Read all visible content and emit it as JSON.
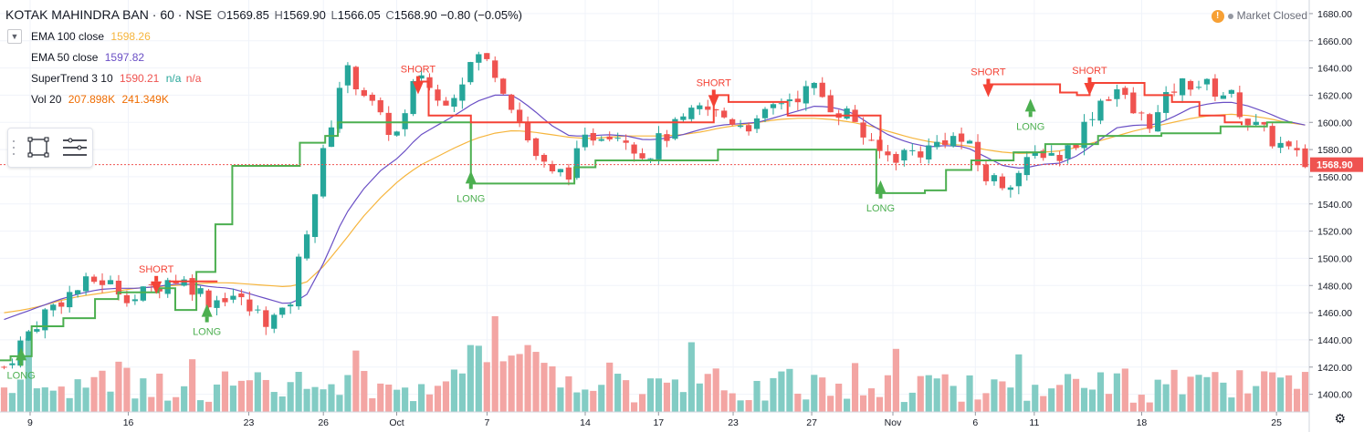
{
  "header": {
    "symbol": "KOTAK MAHINDRA BAN · 60 · NSE",
    "open_label": "O",
    "open": "1569.85",
    "high_label": "H",
    "high": "1569.90",
    "low_label": "L",
    "low": "1566.05",
    "close_label": "C",
    "close": "1568.90",
    "change": "−0.80 (−0.05%)"
  },
  "status": {
    "text": "Market Closed",
    "warning_icon": "exclamation-icon"
  },
  "indicators": [
    {
      "name": "EMA 100 close",
      "value": "1598.26",
      "color": "#f6b53d"
    },
    {
      "name": "EMA 50 close",
      "value": "1597.82",
      "color": "#6a4fc5"
    },
    {
      "name": "SuperTrend 3 10",
      "value": "1590.21",
      "extra1": "n/a",
      "extra2": "n/a",
      "color": "#ef5350",
      "extra_color": "#26a69a"
    },
    {
      "name": "Vol 20",
      "value": "207.898K",
      "value2": "241.349K",
      "color": "#ef6c00"
    }
  ],
  "price_tag": "1568.90",
  "colors": {
    "up": "#26a69a",
    "down": "#ef5350",
    "grid": "#f0f3fa",
    "ema100": "#f6b53d",
    "ema50": "#6a4fc5",
    "st_long": "#4caf50",
    "st_short": "#f44336",
    "vol_up": "#82ccc4",
    "vol_down": "#f3a5a3"
  },
  "chart_data": {
    "type": "candlestick",
    "title": "KOTAK MAHINDRA BAN · 60 · NSE",
    "ylim": [
      1387,
      1690
    ],
    "y_ticks": [
      "1680.00",
      "1660.00",
      "1640.00",
      "1620.00",
      "1600.00",
      "1580.00",
      "1560.00",
      "1540.00",
      "1520.00",
      "1500.00",
      "1480.00",
      "1460.00",
      "1440.00",
      "1420.00",
      "1400.00"
    ],
    "x_ticks": [
      "9",
      "16",
      "23",
      "26",
      "Oct",
      "7",
      "14",
      "17",
      "23",
      "27",
      "Nov",
      "6",
      "11",
      "18",
      "25"
    ],
    "last_price": 1568.9,
    "price_path": [
      1420,
      1440,
      1458,
      1470,
      1478,
      1485,
      1478,
      1470,
      1480,
      1486,
      1480,
      1468,
      1475,
      1462,
      1455,
      1458,
      1520,
      1580,
      1640,
      1625,
      1600,
      1590,
      1640,
      1615,
      1625,
      1650,
      1640,
      1612,
      1580,
      1560,
      1565,
      1590,
      1595,
      1590,
      1575,
      1590,
      1600,
      1610,
      1605,
      1600,
      1598,
      1615,
      1620,
      1625,
      1610,
      1605,
      1580,
      1575,
      1578,
      1580,
      1590,
      1585,
      1560,
      1555,
      1565,
      1580,
      1575,
      1590,
      1615,
      1625,
      1605,
      1600,
      1625,
      1630,
      1625,
      1620,
      1600,
      1590,
      1580,
      1569
    ],
    "ema100_path": [
      1460,
      1462,
      1465,
      1469,
      1472,
      1474,
      1476,
      1478,
      1479,
      1480,
      1481,
      1482,
      1482,
      1481,
      1480,
      1479,
      1482,
      1495,
      1512,
      1530,
      1545,
      1558,
      1568,
      1575,
      1582,
      1588,
      1592,
      1594,
      1593,
      1591,
      1589,
      1588,
      1589,
      1590,
      1590,
      1590,
      1591,
      1593,
      1596,
      1598,
      1600,
      1602,
      1603,
      1603,
      1602,
      1600,
      1597,
      1593,
      1589,
      1586,
      1584,
      1583,
      1580,
      1578,
      1577,
      1578,
      1579,
      1582,
      1586,
      1590,
      1594,
      1597,
      1600,
      1603,
      1605,
      1606,
      1605,
      1603,
      1600,
      1598
    ],
    "ema50_path": [
      1455,
      1460,
      1465,
      1470,
      1474,
      1477,
      1478,
      1478,
      1479,
      1481,
      1481,
      1479,
      1478,
      1474,
      1470,
      1466,
      1472,
      1498,
      1530,
      1550,
      1565,
      1575,
      1590,
      1598,
      1606,
      1615,
      1620,
      1620,
      1610,
      1598,
      1590,
      1590,
      1591,
      1590,
      1587,
      1588,
      1591,
      1595,
      1598,
      1599,
      1600,
      1604,
      1608,
      1612,
      1611,
      1607,
      1598,
      1590,
      1585,
      1582,
      1583,
      1582,
      1575,
      1568,
      1566,
      1569,
      1570,
      1576,
      1586,
      1596,
      1598,
      1598,
      1604,
      1611,
      1614,
      1615,
      1612,
      1607,
      1601,
      1598
    ],
    "supertrend_long_path": [
      [
        0,
        1425
      ],
      [
        0.5,
        1428
      ],
      [
        1.5,
        1450
      ],
      [
        3,
        1456
      ],
      [
        4.5,
        1470
      ],
      [
        5.6,
        1475
      ],
      [
        7.5,
        1478
      ],
      [
        8.3,
        1462
      ],
      [
        9.3,
        1490
      ],
      [
        10.2,
        1525
      ],
      [
        11,
        1568
      ],
      [
        13.5,
        1568
      ],
      [
        14.2,
        1585
      ],
      [
        15.4,
        1590
      ],
      [
        16,
        1600
      ],
      [
        19.8,
        1600
      ],
      [
        22.3,
        1555
      ],
      [
        26.5,
        1555
      ],
      [
        27.2,
        1567
      ],
      [
        28.2,
        1572
      ],
      [
        33.5,
        1572
      ],
      [
        34,
        1580
      ],
      [
        38,
        1580
      ],
      [
        41.5,
        1548
      ],
      [
        43.8,
        1550
      ],
      [
        44.8,
        1565
      ],
      [
        46,
        1572
      ],
      [
        48,
        1578
      ],
      [
        49.5,
        1584
      ],
      [
        52,
        1590
      ],
      [
        55,
        1592
      ],
      [
        57.8,
        1597
      ],
      [
        60,
        1600
      ],
      [
        61.2,
        1600
      ]
    ],
    "supertrend_short_path": [
      [
        8,
        1483
      ],
      [
        10.3,
        1483
      ],
      [
        19.7,
        1630
      ],
      [
        20.3,
        1605
      ],
      [
        21.5,
        1605
      ],
      [
        22.3,
        1600
      ],
      [
        33.8,
        1620
      ],
      [
        34.5,
        1615
      ],
      [
        36.5,
        1615
      ],
      [
        37.3,
        1605
      ],
      [
        40.4,
        1605
      ],
      [
        41.7,
        1580
      ],
      [
        46.8,
        1628
      ],
      [
        49.5,
        1628
      ],
      [
        50.2,
        1622
      ],
      [
        51,
        1620
      ],
      [
        51.6,
        1620
      ],
      [
        51.6,
        1629
      ],
      [
        53.5,
        1629
      ],
      [
        54.2,
        1620
      ],
      [
        55.5,
        1615
      ],
      [
        56.8,
        1605
      ],
      [
        58,
        1600
      ],
      [
        58.8,
        1598
      ]
    ],
    "signals": [
      {
        "type": "long",
        "label": "LONG",
        "pos": 1.0,
        "price": 1425
      },
      {
        "type": "short",
        "label": "SHORT",
        "pos": 7.4,
        "price": 1483
      },
      {
        "type": "long",
        "label": "LONG",
        "pos": 9.8,
        "price": 1457
      },
      {
        "type": "short",
        "label": "SHORT",
        "pos": 19.8,
        "price": 1630
      },
      {
        "type": "long",
        "label": "LONG",
        "pos": 22.3,
        "price": 1555
      },
      {
        "type": "short",
        "label": "SHORT",
        "pos": 33.8,
        "price": 1620
      },
      {
        "type": "long",
        "label": "LONG",
        "pos": 41.7,
        "price": 1548
      },
      {
        "type": "short",
        "label": "SHORT",
        "pos": 46.8,
        "price": 1628
      },
      {
        "type": "long",
        "label": "LONG",
        "pos": 48.8,
        "price": 1608
      },
      {
        "type": "short",
        "label": "SHORT",
        "pos": 51.6,
        "price": 1629
      }
    ]
  }
}
